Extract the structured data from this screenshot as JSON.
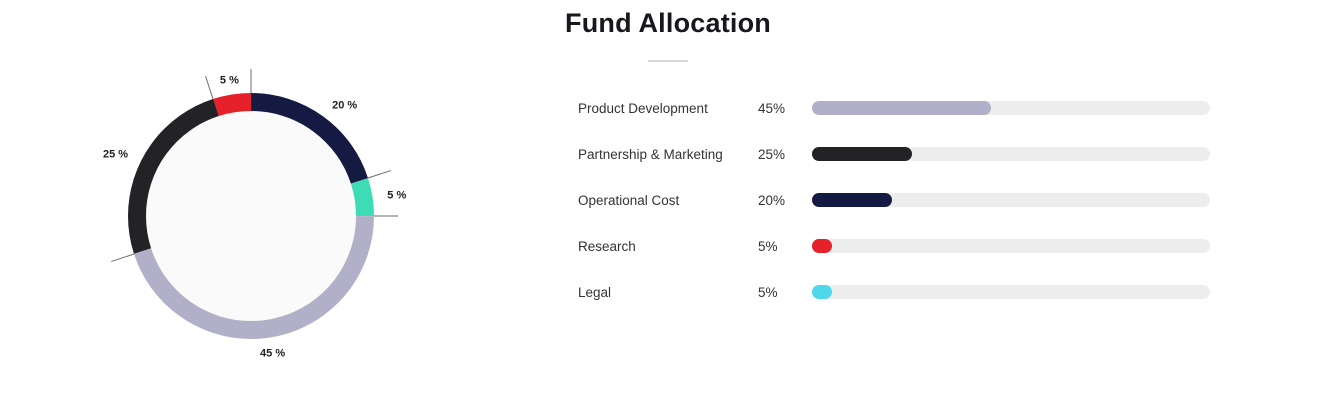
{
  "title": "Fund Allocation",
  "chart_data": {
    "type": "pie",
    "donut": true,
    "title": "Fund Allocation",
    "legend_position": "right",
    "start_angle_deg": 0,
    "direction": "clockwise",
    "donut_draw_order": [
      2,
      4,
      0,
      1,
      3
    ],
    "hole_color": "#FAFAFB",
    "bar_track_color": "#EDEDED",
    "tick_color": "#6E6E6E",
    "series": [
      {
        "label": "Product Development",
        "value": 45,
        "percent_label": "45%",
        "slice_label": "45 %",
        "color": "#B2B0C8",
        "donut_color": "#B2B0C8"
      },
      {
        "label": "Partnership & Marketing",
        "value": 25,
        "percent_label": "25%",
        "slice_label": "25 %",
        "color": "#232327",
        "donut_color": "#232327"
      },
      {
        "label": "Operational Cost",
        "value": 20,
        "percent_label": "20%",
        "slice_label": "20 %",
        "color": "#151A43",
        "donut_color": "#151A43"
      },
      {
        "label": "Research",
        "value": 5,
        "percent_label": "5%",
        "slice_label": "5 %",
        "color": "#E62129",
        "donut_color": "#E62129"
      },
      {
        "label": "Legal",
        "value": 5,
        "percent_label": "5%",
        "slice_label": "5 %",
        "color": "#4FD7EA",
        "donut_color": "#3EDCB4"
      }
    ]
  }
}
